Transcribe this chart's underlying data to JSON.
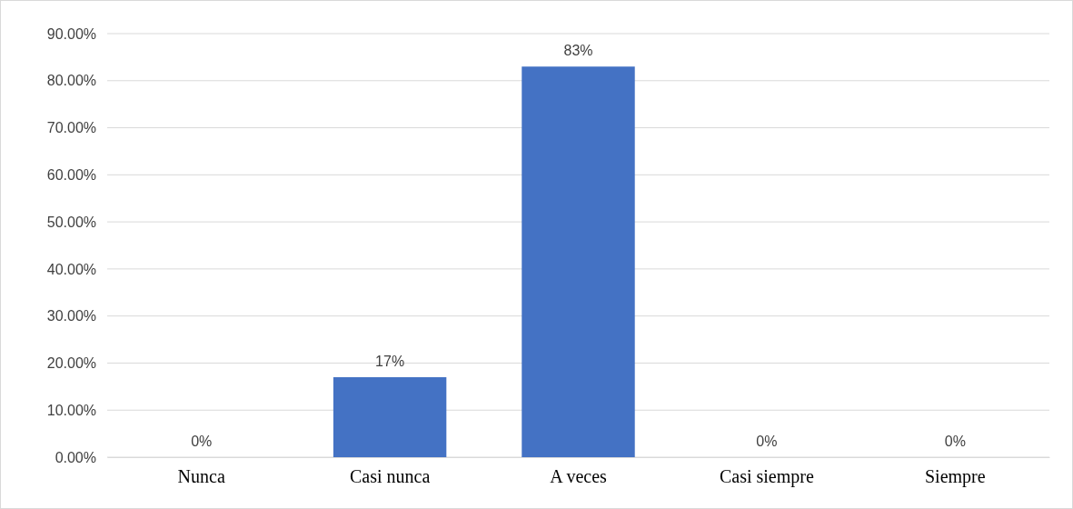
{
  "chart_data": {
    "type": "bar",
    "categories": [
      "Nunca",
      "Casi nunca",
      "A veces",
      "Casi siempre",
      "Siempre"
    ],
    "values": [
      0,
      17,
      83,
      0,
      0
    ],
    "color": "#4472c4",
    "value_labels": [
      "0%",
      "17%",
      "83%",
      "0%",
      "0%"
    ],
    "ylim": [
      0,
      90
    ],
    "yticks": [
      {
        "value": 0,
        "label": "0.00%"
      },
      {
        "value": 10,
        "label": "10.00%"
      },
      {
        "value": 20,
        "label": "20.00%"
      },
      {
        "value": 30,
        "label": "30.00%"
      },
      {
        "value": 40,
        "label": "40.00%"
      },
      {
        "value": 50,
        "label": "50.00%"
      },
      {
        "value": 60,
        "label": "60.00%"
      },
      {
        "value": 70,
        "label": "70.00%"
      },
      {
        "value": 80,
        "label": "80.00%"
      },
      {
        "value": 90,
        "label": "90.00%"
      }
    ],
    "grid": "y"
  }
}
